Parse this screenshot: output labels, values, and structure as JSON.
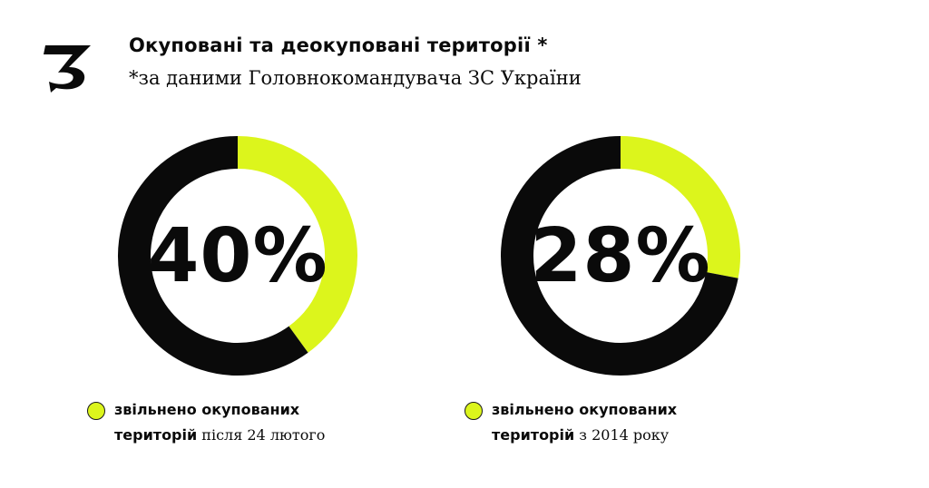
{
  "header": {
    "title": "Окуповані та деокуповані території *",
    "subtitle": "*за даними Головнокомандувача ЗС України"
  },
  "colors": {
    "accent": "#dcf51c",
    "dark": "#0a0a0a"
  },
  "chart_data": [
    {
      "type": "pie",
      "value_label": "40%",
      "slices": [
        {
          "name": "звільнено окупованих територій після 24 лютого",
          "value": 40,
          "color": "#dcf51c"
        },
        {
          "name": "",
          "value": 60,
          "color": "#0a0a0a"
        }
      ],
      "legend": {
        "bold": "звільнено окупованих",
        "bold2": "територій",
        "rest": " після 24 лютого"
      }
    },
    {
      "type": "pie",
      "value_label": "28%",
      "slices": [
        {
          "name": "звільнено окупованих територій з 2014 року",
          "value": 28,
          "color": "#dcf51c"
        },
        {
          "name": "",
          "value": 72,
          "color": "#0a0a0a"
        }
      ],
      "legend": {
        "bold": "звільнено окупованих",
        "bold2": "територій",
        "rest": " з 2014 року"
      }
    }
  ]
}
